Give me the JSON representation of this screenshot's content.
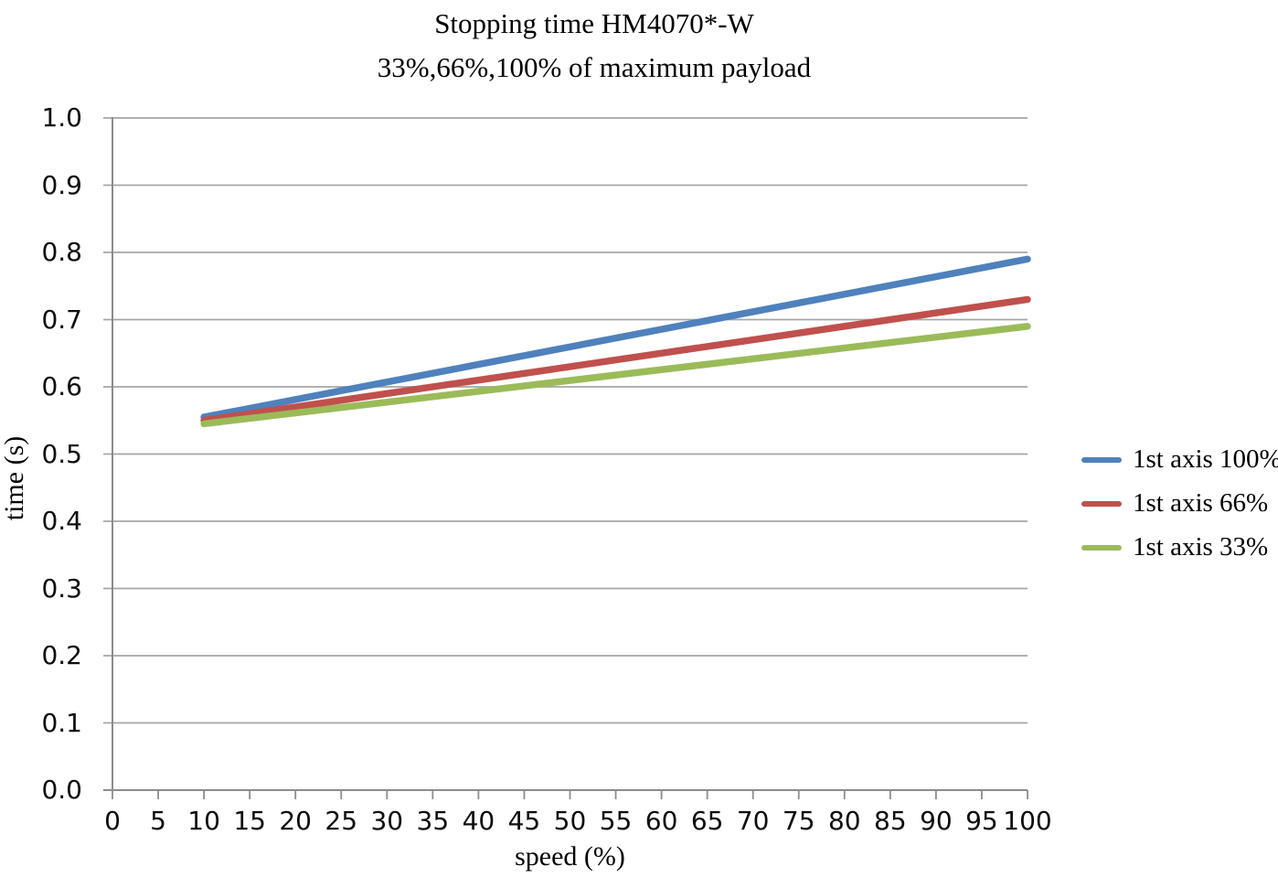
{
  "title": {
    "line1": "Stopping time HM4070*-W",
    "line2": "33%,66%,100% of maximum payload"
  },
  "chart_data": {
    "type": "line",
    "title": "Stopping time HM4070*-W",
    "subtitle": "33%,66%,100% of maximum payload",
    "xlabel": "speed (%)",
    "ylabel": "time (s)",
    "xlim": [
      0,
      100
    ],
    "ylim": [
      0.0,
      1.0
    ],
    "xticks": [
      0,
      5,
      10,
      15,
      20,
      25,
      30,
      35,
      40,
      45,
      50,
      55,
      60,
      65,
      70,
      75,
      80,
      85,
      90,
      95,
      100
    ],
    "yticks": [
      0.0,
      0.1,
      0.2,
      0.3,
      0.4,
      0.5,
      0.6,
      0.7,
      0.8,
      0.9,
      1.0
    ],
    "grid": "horizontal",
    "legend_position": "right",
    "series": [
      {
        "name": "1st axis 100%",
        "color": "#4F81BD",
        "x": [
          10,
          100
        ],
        "y": [
          0.555,
          0.79
        ]
      },
      {
        "name": "1st axis 66%",
        "color": "#C0504D",
        "x": [
          10,
          100
        ],
        "y": [
          0.55,
          0.73
        ]
      },
      {
        "name": "1st axis 33%",
        "color": "#9BBB59",
        "x": [
          10,
          100
        ],
        "y": [
          0.545,
          0.69
        ]
      }
    ],
    "colors": {
      "gridline": "#A6A6A6",
      "axis_line": "#8C8C8C",
      "tick_text": "#0d0d0d",
      "title_text": "#000000",
      "background": "#FFFFFF"
    }
  }
}
